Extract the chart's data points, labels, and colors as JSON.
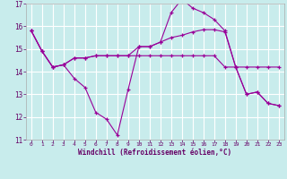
{
  "xlabel": "Windchill (Refroidissement éolien,°C)",
  "bg_color": "#c8ecec",
  "grid_color": "#ffffff",
  "line_color": "#990099",
  "xlim": [
    -0.5,
    23.5
  ],
  "ylim": [
    11,
    17
  ],
  "yticks": [
    11,
    12,
    13,
    14,
    15,
    16,
    17
  ],
  "xticks": [
    0,
    1,
    2,
    3,
    4,
    5,
    6,
    7,
    8,
    9,
    10,
    11,
    12,
    13,
    14,
    15,
    16,
    17,
    18,
    19,
    20,
    21,
    22,
    23
  ],
  "line1_x": [
    0,
    1,
    2,
    3,
    4,
    5,
    6,
    7,
    8,
    9,
    10,
    11,
    12,
    13,
    14,
    15,
    16,
    17,
    18,
    19,
    20,
    21,
    22,
    23
  ],
  "line1_y": [
    15.8,
    14.9,
    14.2,
    14.3,
    14.6,
    14.6,
    14.7,
    14.7,
    14.7,
    14.7,
    14.7,
    14.7,
    14.7,
    14.7,
    14.7,
    14.7,
    14.7,
    14.7,
    14.2,
    14.2,
    14.2,
    14.2,
    14.2,
    14.2
  ],
  "line2_x": [
    0,
    1,
    2,
    3,
    4,
    5,
    6,
    7,
    8,
    9,
    10,
    11,
    12,
    13,
    14,
    15,
    16,
    17,
    18,
    19,
    20,
    21,
    22,
    23
  ],
  "line2_y": [
    15.8,
    14.9,
    14.2,
    14.3,
    13.7,
    13.3,
    12.2,
    11.9,
    11.2,
    13.2,
    15.1,
    15.1,
    15.3,
    16.6,
    17.2,
    16.8,
    16.6,
    16.3,
    15.8,
    14.2,
    13.0,
    13.1,
    12.6,
    12.5
  ],
  "line3_x": [
    0,
    1,
    2,
    3,
    4,
    5,
    6,
    7,
    8,
    9,
    10,
    11,
    12,
    13,
    14,
    15,
    16,
    17,
    18,
    19,
    20,
    21,
    22,
    23
  ],
  "line3_y": [
    15.8,
    14.9,
    14.2,
    14.3,
    14.6,
    14.6,
    14.7,
    14.7,
    14.7,
    14.7,
    15.1,
    15.1,
    15.3,
    15.5,
    15.6,
    15.75,
    15.85,
    15.85,
    15.75,
    14.2,
    13.0,
    13.1,
    12.6,
    12.5
  ]
}
